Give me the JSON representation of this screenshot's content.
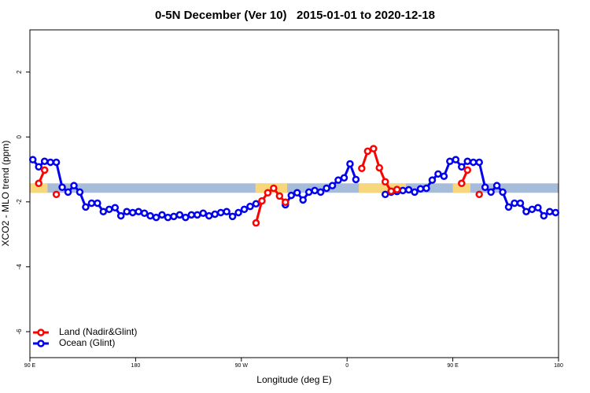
{
  "chart_data": {
    "type": "line",
    "title": "0-5N December (Ver 10)   2015-01-01 to 2020-12-18",
    "xlabel": "Longitude (deg E)",
    "ylabel": "XCO2 - MLO trend (ppm)",
    "x": [
      92.5,
      97.5,
      102.5,
      107.5,
      112.5,
      117.5,
      122.5,
      127.5,
      132.5,
      137.5,
      142.5,
      147.5,
      152.5,
      157.5,
      162.5,
      167.5,
      172.5,
      177.5,
      182.5,
      187.5,
      192.5,
      197.5,
      202.5,
      207.5,
      212.5,
      217.5,
      222.5,
      227.5,
      232.5,
      237.5,
      242.5,
      247.5,
      252.5,
      257.5,
      262.5,
      267.5,
      272.5,
      277.5,
      282.5,
      287.5,
      292.5,
      297.5,
      302.5,
      307.5,
      312.5,
      317.5,
      322.5,
      327.5,
      332.5,
      337.5,
      342.5,
      347.5,
      352.5,
      357.5,
      362.5,
      367.5,
      372.5,
      377.5,
      382.5,
      387.5,
      392.5,
      397.5,
      402.5,
      407.5,
      412.5,
      417.5,
      422.5,
      427.5,
      432.5,
      437.5,
      442.5,
      447.5,
      452.5,
      457.5,
      462.5,
      467.5,
      472.5,
      477.5,
      482.5,
      487.5,
      492.5,
      497.5,
      502.5,
      507.5,
      512.5,
      517.5,
      522.5,
      527.5,
      532.5,
      537.5
    ],
    "series": [
      {
        "name": "Land (Nadir&Glint)",
        "color": "#ff0000",
        "values": [
          null,
          -1.43,
          -1.02,
          null,
          -1.77,
          null,
          null,
          null,
          null,
          null,
          null,
          null,
          null,
          null,
          null,
          null,
          null,
          null,
          null,
          null,
          null,
          null,
          null,
          null,
          null,
          null,
          null,
          null,
          null,
          null,
          null,
          null,
          null,
          null,
          null,
          null,
          null,
          null,
          -2.65,
          -1.97,
          -1.72,
          -1.58,
          -1.82,
          -2.01,
          null,
          null,
          null,
          null,
          null,
          null,
          null,
          null,
          null,
          null,
          null,
          null,
          -0.97,
          -0.44,
          -0.36,
          -0.95,
          -1.38,
          -1.67,
          -1.62,
          null,
          null,
          null,
          null,
          null,
          null,
          null,
          null,
          null,
          null,
          -1.43,
          -1.02,
          null,
          -1.77,
          null,
          null,
          null,
          null,
          null,
          null,
          null,
          null,
          null,
          null,
          null,
          null,
          null
        ]
      },
      {
        "name": "Ocean (Glint)",
        "color": "#0000ee",
        "values": [
          -0.7,
          -0.92,
          -0.75,
          -0.78,
          -0.78,
          -1.55,
          -1.7,
          -1.5,
          -1.7,
          -2.16,
          -2.04,
          -2.04,
          -2.3,
          -2.23,
          -2.18,
          -2.43,
          -2.3,
          -2.33,
          -2.3,
          -2.35,
          -2.43,
          -2.48,
          -2.4,
          -2.48,
          -2.45,
          -2.4,
          -2.48,
          -2.4,
          -2.4,
          -2.35,
          -2.43,
          -2.38,
          -2.33,
          -2.3,
          -2.45,
          -2.33,
          -2.23,
          -2.14,
          -2.06,
          null,
          null,
          null,
          null,
          -2.09,
          -1.8,
          -1.72,
          -1.94,
          -1.7,
          -1.65,
          -1.7,
          -1.58,
          -1.5,
          -1.33,
          -1.26,
          -0.83,
          -1.31,
          null,
          null,
          null,
          null,
          -1.77,
          -1.7,
          -1.68,
          -1.65,
          -1.63,
          -1.7,
          -1.6,
          -1.58,
          -1.33,
          -1.14,
          -1.21,
          -0.75,
          -0.7,
          -0.92,
          -0.75,
          -0.78,
          -0.78,
          -1.55,
          -1.7,
          -1.5,
          -1.7,
          -2.16,
          -2.04,
          -2.04,
          -2.3,
          -2.23,
          -2.18,
          -2.43,
          -2.3,
          -2.33
        ]
      }
    ],
    "band": {
      "range": [
        -1.72,
        -1.43
      ],
      "color": "#a7bcd9",
      "land_color": "#f8d77c",
      "land_spans": [
        [
          90,
          105
        ],
        [
          282,
          309
        ],
        [
          370,
          410
        ],
        [
          450,
          465
        ]
      ]
    },
    "xlim": [
      90,
      540
    ],
    "xticks": [
      {
        "value": 90,
        "label": "90 E"
      },
      180,
      {
        "value": 270,
        "label": "90 W"
      },
      {
        "value": 360,
        "label": "0"
      },
      {
        "value": 450,
        "label": "90 E"
      },
      {
        "value": 540,
        "label": "180"
      }
    ],
    "ylim": [
      -6.8,
      3.3
    ],
    "yticks": [
      -6,
      -4,
      -2,
      0,
      2
    ],
    "legend": "bottom-left"
  }
}
